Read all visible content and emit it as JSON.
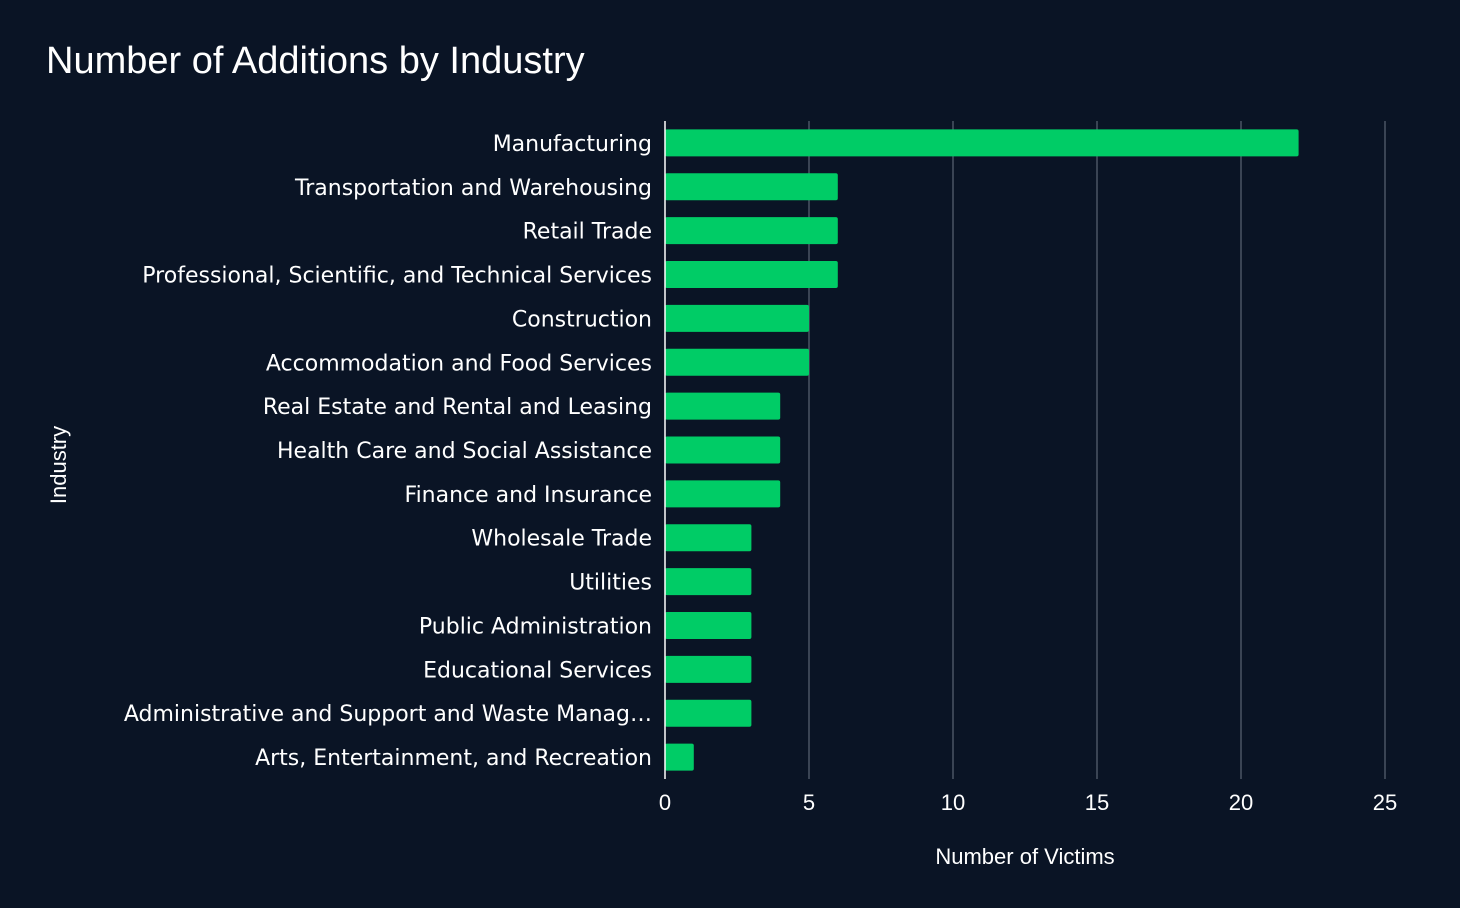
{
  "chart_data": {
    "type": "bar",
    "orientation": "horizontal",
    "title": "Number of Additions by Industry",
    "xlabel": "Number of Victims",
    "ylabel": "Industry",
    "categories": [
      "Manufacturing",
      "Transportation and Warehousing",
      "Retail Trade",
      "Professional, Scientific, and Technical Services",
      "Construction",
      "Accommodation and Food Services",
      "Real Estate and Rental and Leasing",
      "Health Care and Social Assistance",
      "Finance and Insurance",
      "Wholesale Trade",
      "Utilities",
      "Public Administration",
      "Educational Services",
      "Administrative and Support and Waste Manag…",
      "Arts, Entertainment, and Recreation"
    ],
    "values": [
      22,
      6,
      6,
      6,
      5,
      5,
      4,
      4,
      4,
      3,
      3,
      3,
      3,
      3,
      1
    ],
    "xlim": [
      0,
      25
    ],
    "xticks": [
      0,
      5,
      10,
      15,
      20,
      25
    ],
    "grid": true,
    "legend": "none",
    "colors": {
      "background": "#0a1425",
      "bar": "#00cc66",
      "grid": "#4a5464",
      "axis": "#ffffff",
      "text": "#ffffff"
    }
  }
}
